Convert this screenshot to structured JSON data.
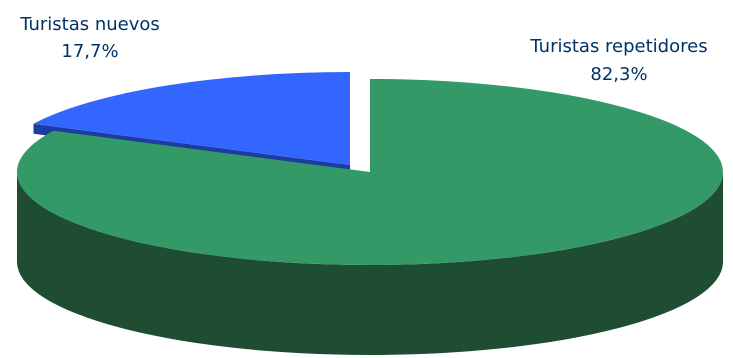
{
  "chart_data": {
    "type": "pie",
    "style": "3d-exploded",
    "title": "",
    "slices": [
      {
        "label": "Turistas repetidores",
        "value": 82.3,
        "value_text": "82,3%",
        "color": "#339966",
        "side_color": "#1e4d33",
        "text_color": "#003366"
      },
      {
        "label": "Turistas nuevos",
        "value": 17.7,
        "value_text": "17,7%",
        "color": "#3366ff",
        "side_color": "#1c3da0",
        "text_color": "#003366"
      }
    ]
  }
}
